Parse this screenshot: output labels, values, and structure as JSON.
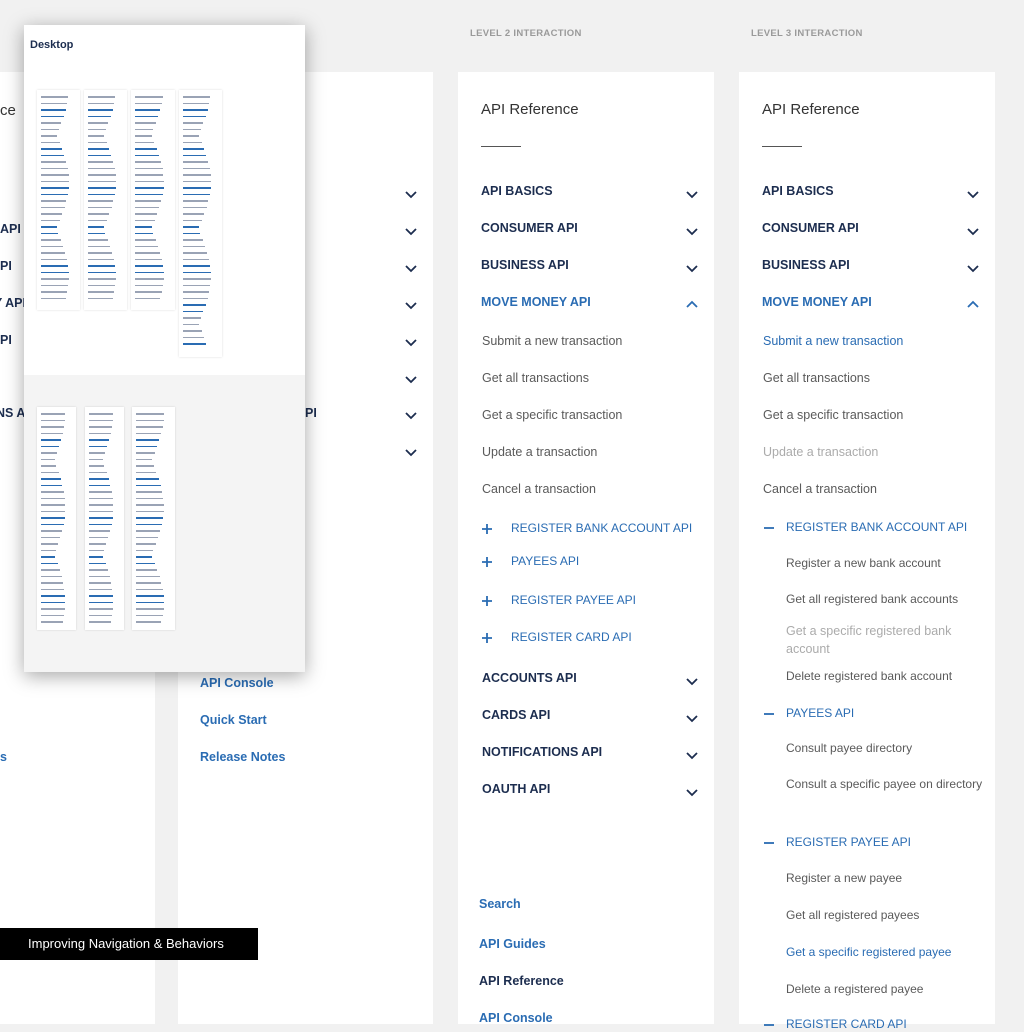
{
  "overlay": {
    "title": "Desktop"
  },
  "banner": "Improving Navigation & Behaviors",
  "panel_a": {
    "fragments": [
      "ce",
      "API",
      "PI",
      "Y API",
      "PI",
      "NS A",
      "s"
    ]
  },
  "panel_b": {
    "fragment": "PI",
    "links": [
      "API Console",
      "Quick Start",
      "Release Notes"
    ]
  },
  "level2": {
    "header": "LEVEL 2 INTERACTION",
    "title": "API Reference",
    "menu": [
      "API BASICS",
      "CONSUMER API",
      "BUSINESS API",
      "MOVE MONEY API"
    ],
    "move_money_items": [
      "Submit a new transaction",
      "Get all transactions",
      "Get a specific transaction",
      "Update a transaction",
      "Cancel a transaction"
    ],
    "sub_apis": [
      "REGISTER BANK ACCOUNT API",
      "PAYEES API",
      "REGISTER PAYEE API",
      "REGISTER CARD API"
    ],
    "more_menu": [
      "ACCOUNTS API",
      "CARDS API",
      "NOTIFICATIONS API",
      "OAUTH API"
    ],
    "footer_links": [
      "Search",
      "API Guides",
      "API Reference",
      "API Console"
    ]
  },
  "level3": {
    "header": "LEVEL 3 INTERACTION",
    "title": "API Reference",
    "menu": [
      "API BASICS",
      "CONSUMER API",
      "BUSINESS API",
      "MOVE MONEY API"
    ],
    "move_money_items": [
      "Submit a new transaction",
      "Get all transactions",
      "Get a specific transaction",
      "Update a transaction",
      "Cancel a transaction"
    ],
    "register_bank_account": {
      "title": "REGISTER BANK ACCOUNT API",
      "items": [
        "Register a new bank account",
        "Get all registered bank accounts",
        "Get a specific registered bank account",
        "Delete registered bank account"
      ]
    },
    "payees": {
      "title": "PAYEES API",
      "items": [
        "Consult payee directory",
        "Consult a specific payee on directory"
      ]
    },
    "register_payee": {
      "title": "REGISTER PAYEE API",
      "items": [
        "Register a new payee",
        "Get all registered payees",
        "Get a specific registered payee",
        "Delete a registered payee"
      ]
    },
    "register_card": "REGISTER CARD API"
  }
}
